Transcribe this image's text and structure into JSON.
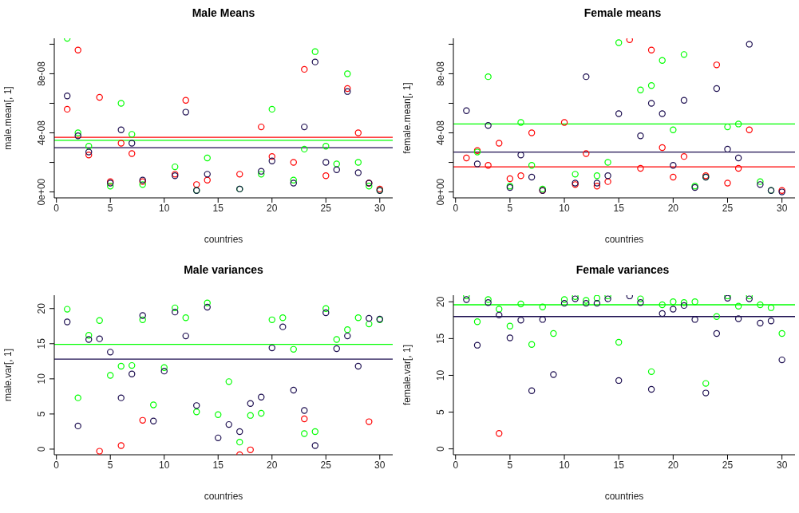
{
  "chart_data": [
    {
      "type": "scatter",
      "title": "Male Means",
      "xlabel": "countries",
      "ylabel": "male.mean[, 1]",
      "marker": "circle",
      "x": [
        1,
        2,
        3,
        4,
        5,
        6,
        7,
        8,
        9,
        10,
        11,
        12,
        13,
        14,
        15,
        16,
        17,
        18,
        19,
        20,
        21,
        22,
        23,
        24,
        25,
        26,
        27,
        28,
        29,
        30
      ],
      "xlim": [
        -0.2,
        31.2
      ],
      "xticks": [
        0,
        5,
        10,
        15,
        20,
        25,
        30
      ],
      "ylim": [
        -4e-09,
        1.04e-07
      ],
      "yticks": [
        {
          "value": 0,
          "label": "0e+00"
        },
        {
          "value": 2e-08,
          "label": null
        },
        {
          "value": 4e-08,
          "label": "4e-08"
        },
        {
          "value": 6e-08,
          "label": null
        },
        {
          "value": 8e-08,
          "label": "8e-08"
        },
        {
          "value": 1e-07,
          "label": null
        }
      ],
      "series": [
        {
          "color": "#ff0000",
          "values": [
            5.6e-08,
            9.6e-08,
            2.5e-08,
            6.4e-08,
            7e-09,
            3.3e-08,
            2.6e-08,
            7e-09,
            null,
            null,
            1.2e-08,
            6.2e-08,
            5e-09,
            8e-09,
            null,
            null,
            1.2e-08,
            null,
            4.4e-08,
            2.4e-08,
            null,
            2e-08,
            8.3e-08,
            null,
            1.1e-08,
            null,
            7e-08,
            4e-08,
            6e-09,
            2e-09
          ]
        },
        {
          "color": "#00ff00",
          "values": [
            1.04e-07,
            4e-08,
            3.1e-08,
            null,
            4e-09,
            6e-08,
            3.9e-08,
            5e-09,
            null,
            null,
            1.7e-08,
            null,
            1e-09,
            2.3e-08,
            null,
            null,
            2e-09,
            null,
            1.2e-08,
            5.6e-08,
            null,
            8e-09,
            2.9e-08,
            9.5e-08,
            3.1e-08,
            1.9e-08,
            8e-08,
            2e-08,
            4e-09,
            1e-09
          ]
        },
        {
          "color": "#1b0d4f",
          "values": [
            6.5e-08,
            3.8e-08,
            2.7e-08,
            null,
            6e-09,
            4.2e-08,
            3.3e-08,
            8e-09,
            null,
            null,
            1.1e-08,
            5.4e-08,
            1e-09,
            1.2e-08,
            null,
            null,
            2e-09,
            null,
            1.4e-08,
            2.1e-08,
            null,
            6e-09,
            4.4e-08,
            8.8e-08,
            2e-08,
            1.5e-08,
            6.8e-08,
            1.3e-08,
            6e-09,
            1e-09
          ]
        }
      ],
      "ref_lines": [
        {
          "axis": "y",
          "value": 3.7e-08,
          "color": "#ff0000"
        },
        {
          "axis": "y",
          "value": 3.5e-08,
          "color": "#00ff00"
        },
        {
          "axis": "y",
          "value": 3e-08,
          "color": "#1b0d4f"
        }
      ]
    },
    {
      "type": "scatter",
      "title": "Female means",
      "xlabel": "countries",
      "ylabel": "female.mean[, 1]",
      "marker": "circle",
      "x": [
        1,
        2,
        3,
        4,
        5,
        6,
        7,
        8,
        9,
        10,
        11,
        12,
        13,
        14,
        15,
        16,
        17,
        18,
        19,
        20,
        21,
        22,
        23,
        24,
        25,
        26,
        27,
        28,
        29,
        30
      ],
      "xlim": [
        -0.2,
        31.2
      ],
      "xticks": [
        0,
        5,
        10,
        15,
        20,
        25,
        30
      ],
      "ylim": [
        -4e-09,
        1.04e-07
      ],
      "yticks": [
        {
          "value": 0,
          "label": "0e+00"
        },
        {
          "value": 2e-08,
          "label": null
        },
        {
          "value": 4e-08,
          "label": "4e-08"
        },
        {
          "value": 6e-08,
          "label": null
        },
        {
          "value": 8e-08,
          "label": "8e-08"
        },
        {
          "value": 1e-07,
          "label": null
        }
      ],
      "series": [
        {
          "color": "#ff0000",
          "values": [
            2.3e-08,
            2.8e-08,
            1.8e-08,
            3.3e-08,
            9e-09,
            1.1e-08,
            4e-08,
            1e-09,
            null,
            4.7e-08,
            5e-09,
            2.6e-08,
            4e-09,
            7e-09,
            null,
            1.03e-07,
            1.6e-08,
            9.6e-08,
            3e-08,
            1e-08,
            2.4e-08,
            null,
            1.1e-08,
            8.6e-08,
            6e-09,
            1.6e-08,
            4.2e-08,
            null,
            null,
            1e-09
          ]
        },
        {
          "color": "#00ff00",
          "values": [
            null,
            2.7e-08,
            7.8e-08,
            null,
            4e-09,
            4.7e-08,
            1.8e-08,
            2e-09,
            null,
            null,
            1.2e-08,
            null,
            1.1e-08,
            2e-08,
            1.01e-07,
            null,
            6.9e-08,
            7.2e-08,
            8.9e-08,
            4.2e-08,
            9.3e-08,
            4e-09,
            1e-08,
            null,
            4.4e-08,
            4.6e-08,
            null,
            7e-09,
            1e-09,
            null
          ]
        },
        {
          "color": "#1b0d4f",
          "values": [
            5.5e-08,
            1.9e-08,
            4.5e-08,
            null,
            3e-09,
            2.5e-08,
            1e-08,
            1e-09,
            null,
            null,
            6e-09,
            7.8e-08,
            6e-09,
            1.1e-08,
            5.3e-08,
            null,
            3.8e-08,
            6e-08,
            5.3e-08,
            1.8e-08,
            6.2e-08,
            3e-09,
            1e-08,
            7e-08,
            2.9e-08,
            2.3e-08,
            1e-07,
            5e-09,
            1e-09,
            0
          ]
        }
      ],
      "ref_lines": [
        {
          "axis": "y",
          "value": 4.6e-08,
          "color": "#00ff00"
        },
        {
          "axis": "y",
          "value": 2.7e-08,
          "color": "#1b0d4f"
        },
        {
          "axis": "y",
          "value": 1.7e-08,
          "color": "#ff0000"
        }
      ]
    },
    {
      "type": "scatter",
      "title": "Male variances",
      "xlabel": "countries",
      "ylabel": "male.var[, 1]",
      "marker": "circle",
      "x": [
        1,
        2,
        3,
        4,
        5,
        6,
        7,
        8,
        9,
        10,
        11,
        12,
        13,
        14,
        15,
        16,
        17,
        18,
        19,
        20,
        21,
        22,
        23,
        24,
        25,
        26,
        27,
        28,
        29,
        30
      ],
      "xlim": [
        -0.2,
        31.2
      ],
      "xticks": [
        0,
        5,
        10,
        15,
        20,
        25,
        30
      ],
      "ylim": [
        -0.8,
        21.9
      ],
      "yticks": [
        0,
        5,
        10,
        15,
        20
      ],
      "series": [
        {
          "color": "#ff0000",
          "values": [
            null,
            null,
            null,
            -0.3,
            null,
            0.5,
            null,
            4.1,
            null,
            null,
            null,
            null,
            null,
            null,
            null,
            null,
            -0.8,
            -0.1,
            null,
            null,
            null,
            null,
            4.3,
            null,
            null,
            null,
            null,
            null,
            3.9,
            null
          ]
        },
        {
          "color": "#00ff00",
          "values": [
            19.9,
            7.3,
            16.2,
            18.3,
            10.5,
            11.8,
            11.9,
            18.4,
            6.3,
            11.6,
            20.1,
            18.7,
            5.3,
            20.8,
            4.9,
            9.6,
            1.0,
            4.8,
            5.1,
            18.4,
            18.7,
            14.2,
            2.2,
            2.5,
            20.0,
            15.6,
            17.0,
            18.7,
            17.8,
            18.4
          ]
        },
        {
          "color": "#1b0d4f",
          "values": [
            18.1,
            3.3,
            15.6,
            15.7,
            13.8,
            7.3,
            10.7,
            19.0,
            4.0,
            11.1,
            19.5,
            16.1,
            6.2,
            20.2,
            1.6,
            3.5,
            2.5,
            6.5,
            7.4,
            14.4,
            17.4,
            8.4,
            5.5,
            0.5,
            19.4,
            14.3,
            16.1,
            11.8,
            18.6,
            18.5
          ]
        }
      ],
      "ref_lines": [
        {
          "axis": "y",
          "value": 14.9,
          "color": "#00ff00"
        },
        {
          "axis": "y",
          "value": 12.8,
          "color": "#1b0d4f"
        }
      ]
    },
    {
      "type": "scatter",
      "title": "Female variances",
      "xlabel": "countries",
      "ylabel": "female.var[, 1]",
      "marker": "circle",
      "x": [
        1,
        2,
        3,
        4,
        5,
        6,
        7,
        8,
        9,
        10,
        11,
        12,
        13,
        14,
        15,
        16,
        17,
        18,
        19,
        20,
        21,
        22,
        23,
        24,
        25,
        26,
        27,
        28,
        29,
        30
      ],
      "xlim": [
        -0.2,
        31.2
      ],
      "xticks": [
        0,
        5,
        10,
        15,
        20,
        25,
        30
      ],
      "ylim": [
        -0.8,
        20.9
      ],
      "yticks": [
        0,
        5,
        10,
        15,
        20
      ],
      "series": [
        {
          "color": "#ff0000",
          "values": [
            null,
            null,
            null,
            2.1,
            null,
            null,
            null,
            null,
            null,
            null,
            null,
            null,
            null,
            null,
            null,
            null,
            null,
            null,
            null,
            null,
            null,
            null,
            null,
            null,
            null,
            null,
            null,
            null,
            null,
            null
          ]
        },
        {
          "color": "#00ff00",
          "values": [
            20.8,
            17.3,
            20.3,
            19.0,
            16.7,
            19.7,
            14.2,
            19.3,
            15.7,
            20.3,
            20.7,
            20.2,
            20.5,
            20.8,
            14.5,
            null,
            20.4,
            10.5,
            19.6,
            20.0,
            19.9,
            20.0,
            8.9,
            18.0,
            20.8,
            19.4,
            20.8,
            19.6,
            19.2,
            15.7
          ]
        },
        {
          "color": "#1b0d4f",
          "values": [
            20.3,
            14.1,
            19.9,
            18.2,
            15.1,
            17.5,
            7.9,
            17.6,
            10.1,
            19.8,
            20.4,
            19.8,
            19.8,
            20.4,
            9.3,
            20.8,
            19.9,
            8.1,
            18.4,
            19.0,
            19.5,
            17.6,
            7.6,
            15.7,
            20.5,
            17.7,
            20.4,
            17.1,
            17.4,
            12.1
          ]
        }
      ],
      "ref_lines": [
        {
          "axis": "y",
          "value": 19.6,
          "color": "#00ff00"
        },
        {
          "axis": "y",
          "value": 18.0,
          "color": "#1b0d4f"
        }
      ]
    }
  ]
}
